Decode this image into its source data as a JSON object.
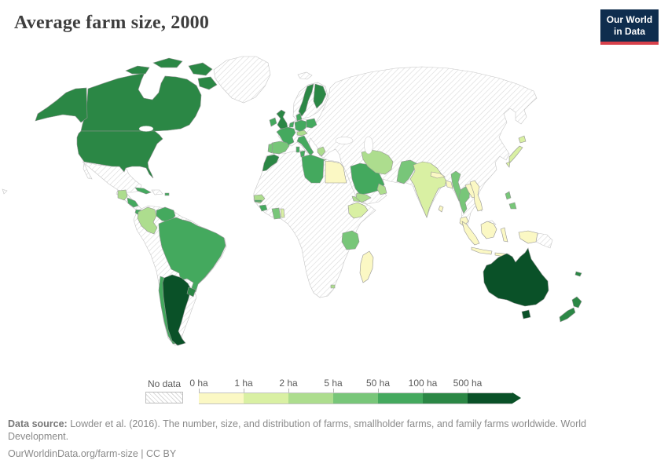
{
  "header": {
    "title": "Average farm size, 2000"
  },
  "logo": {
    "line1": "Our World",
    "line2": "in Data",
    "bg_color": "#0f2d4e",
    "accent_color": "#d8414b"
  },
  "footer": {
    "source_label": "Data source:",
    "source_text": " Lowder et al. (2016). The number, size, and distribution of farms, smallholder farms, and family farms worldwide. World Development.",
    "link_text": "OurWorldinData.org/farm-size | CC BY"
  },
  "chart_data": {
    "type": "choropleth-map",
    "title": "Average farm size, 2000",
    "unit": "hectares (ha)",
    "legend": {
      "position": "bottom",
      "no_data_label": "No data",
      "no_data_pattern": "diagonal-hatch",
      "tick_labels": [
        "0 ha",
        "1 ha",
        "2 ha",
        "5 ha",
        "50 ha",
        "100 ha",
        "500 ha"
      ],
      "bucket_labels": [
        "0–1 ha",
        "1–2 ha",
        "2–5 ha",
        "5–50 ha",
        "50–100 ha",
        "100–500 ha",
        "over 500 ha"
      ],
      "bucket_colors": [
        "#fbf8c4",
        "#d9f0a3",
        "#addd8e",
        "#78c679",
        "#44a95e",
        "#2b8745",
        "#0a5128"
      ]
    },
    "countries": {
      "Canada": 5,
      "United States": 5,
      "Guatemala": 2,
      "Nicaragua": 4,
      "Panama": 4,
      "Cuba": 4,
      "Puerto Rico": 4,
      "Colombia": 2,
      "Venezuela": 4,
      "Suriname": 2,
      "Brazil": 4,
      "Chile": 4,
      "Argentina": 6,
      "Uruguay": 5,
      "United Kingdom": 5,
      "Ireland": 4,
      "Sweden": 5,
      "Finland": 5,
      "Denmark": 4,
      "Germany": 4,
      "Netherlands": 4,
      "Poland": 4,
      "France": 4,
      "Spain": 3,
      "Portugal": 3,
      "Italy": 4,
      "Austria": 2,
      "Greece": 2,
      "Morocco": 5,
      "Tunisia": 4,
      "Libya": 4,
      "Egypt": 0,
      "Senegal": 2,
      "Gambia": 4,
      "Guinea": 4,
      "Ghana": 3,
      "Togo": 1,
      "Ethiopia": 1,
      "Eritrea": 2,
      "Tanzania": 3,
      "Madagascar": 0,
      "Lesotho": 2,
      "Saudi Arabia": 4,
      "Yemen": 2,
      "Oman": 2,
      "Iran": 2,
      "Pakistan": 3,
      "India": 1,
      "Nepal": 0,
      "Bangladesh": 0,
      "Sri Lanka": 0,
      "Myanmar": 3,
      "Thailand": 3,
      "Laos": 0,
      "Vietnam": 0,
      "Japan": 1,
      "Philippines": 3,
      "Malaysia": 0,
      "Indonesia": 0,
      "Australia": 6,
      "New Zealand": 5,
      "New Caledonia": 5
    },
    "no_data_regions": [
      "Greenland",
      "Iceland",
      "Mexico",
      "Hispaniola",
      "Ecuador",
      "Peru",
      "Bolivia",
      "Paraguay",
      "Guyana",
      "French Guiana",
      "Norway",
      "Eastern Europe",
      "Russia",
      "Turkey",
      "Iraq",
      "Afghanistan",
      "Central Asia",
      "China",
      "Mongolia",
      "Korea",
      "Cambodia",
      "Sahara and Central-Southern Africa",
      "Papua New Guinea"
    ]
  }
}
